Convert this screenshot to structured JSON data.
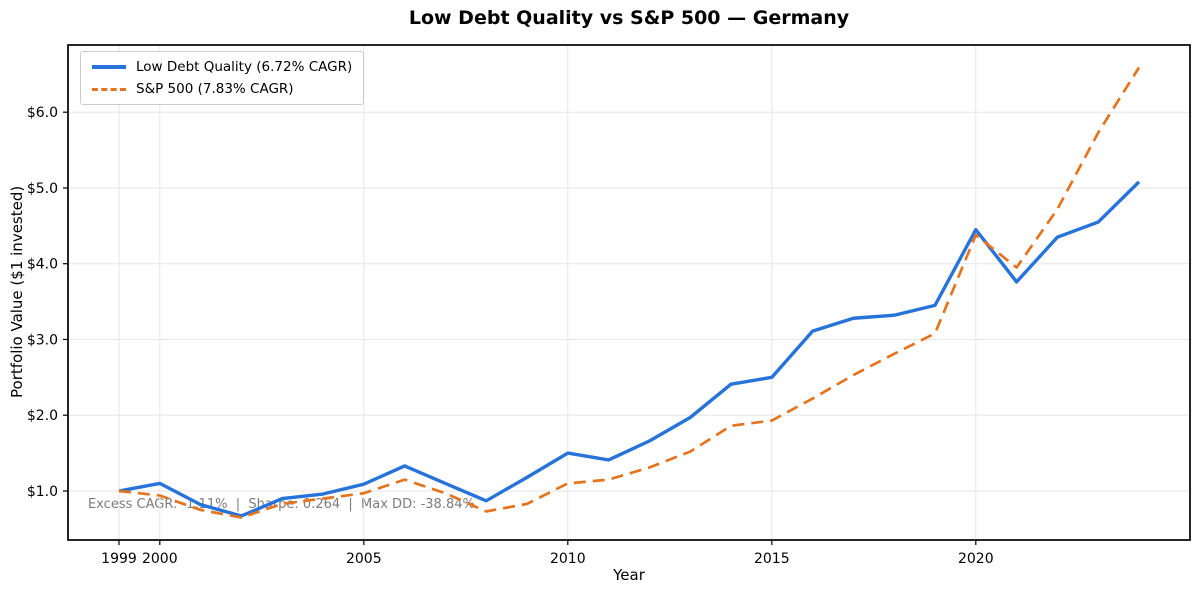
{
  "chart_data": {
    "type": "line",
    "title": "Low Debt Quality vs S&P 500 — Germany",
    "xlabel": "Year",
    "ylabel": "Portfolio Value ($1 invested)",
    "x": [
      1999,
      2000,
      2001,
      2002,
      2003,
      2004,
      2005,
      2006,
      2007,
      2008,
      2009,
      2010,
      2011,
      2012,
      2013,
      2014,
      2015,
      2016,
      2017,
      2018,
      2019,
      2020,
      2021,
      2022,
      2023,
      2024
    ],
    "series": [
      {
        "name": "Low Debt Quality (6.72% CAGR)",
        "color": "#2673d9",
        "style": "solid",
        "values": [
          1.0,
          1.1,
          0.82,
          0.67,
          0.9,
          0.96,
          1.09,
          1.33,
          1.1,
          0.87,
          1.18,
          1.5,
          1.41,
          1.66,
          1.97,
          2.41,
          2.5,
          3.11,
          3.28,
          3.32,
          3.45,
          4.45,
          3.76,
          4.35,
          4.55,
          5.08
        ]
      },
      {
        "name": "S&P 500 (7.83% CAGR)",
        "color": "#e6731e",
        "style": "dashed",
        "values": [
          1.0,
          0.94,
          0.75,
          0.65,
          0.83,
          0.9,
          0.97,
          1.15,
          0.97,
          0.73,
          0.83,
          1.1,
          1.15,
          1.31,
          1.52,
          1.86,
          1.93,
          2.22,
          2.53,
          2.81,
          3.08,
          4.38,
          3.95,
          4.72,
          5.73,
          6.59
        ]
      }
    ],
    "xlim": [
      1997.75,
      2025.25
    ],
    "ylim": [
      0.353,
      6.887
    ],
    "x_ticks": [
      1999,
      2000,
      2005,
      2010,
      2015,
      2020
    ],
    "x_tick_labels": [
      "1999",
      "2000",
      "2005",
      "2010",
      "2015",
      "2020"
    ],
    "y_ticks": [
      1,
      2,
      3,
      4,
      5,
      6
    ],
    "y_tick_labels": [
      "$1.0",
      "$2.0",
      "$3.0",
      "$4.0",
      "$5.0",
      "$6.0"
    ],
    "grid": true,
    "legend_position": "upper-left"
  },
  "annotation": {
    "text": "Excess CAGR: -1.11%  |  Sharpe: 0.264  |  Max DD: -38.84%"
  },
  "colors": {
    "line_primary": "#2673d9",
    "line_secondary": "#e6731e",
    "grid": "#e6e6e6",
    "frame": "#000000",
    "annotation_text": "#7c7c7c",
    "background": "#ffffff"
  }
}
